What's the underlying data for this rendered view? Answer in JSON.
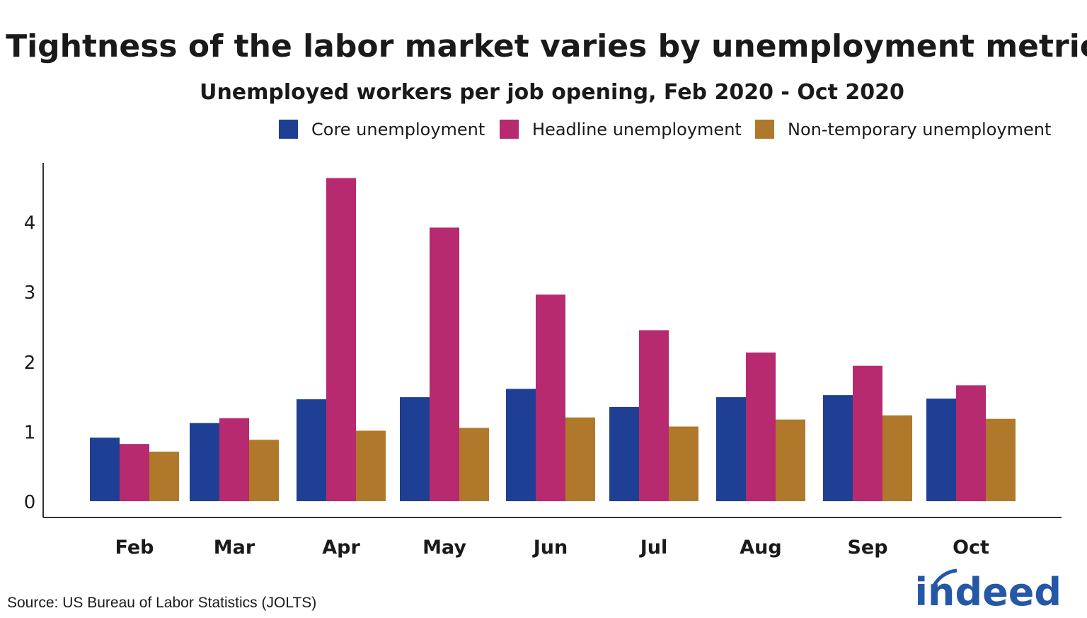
{
  "chart_data": {
    "type": "bar",
    "title": "Tightness of the labor market varies by unemployment metric",
    "subtitle": "Unemployed workers per job opening, Feb 2020 - Oct 2020",
    "xlabel": "",
    "ylabel": "",
    "categories": [
      "Feb",
      "Mar",
      "Apr",
      "May",
      "Jun",
      "Jul",
      "Aug",
      "Sep",
      "Oct"
    ],
    "series": [
      {
        "name": "Core unemployment",
        "color": "#1f3f94",
        "values": [
          0.91,
          1.12,
          1.46,
          1.49,
          1.61,
          1.35,
          1.49,
          1.52,
          1.47
        ]
      },
      {
        "name": "Headline unemployment",
        "color": "#b72a6f",
        "values": [
          0.82,
          1.19,
          4.63,
          3.92,
          2.96,
          2.45,
          2.13,
          1.94,
          1.66
        ]
      },
      {
        "name": "Non-temporary unemployment",
        "color": "#b0782b",
        "values": [
          0.71,
          0.88,
          1.01,
          1.05,
          1.2,
          1.07,
          1.17,
          1.23,
          1.18
        ]
      }
    ],
    "yticks": [
      "0",
      "1",
      "2",
      "3",
      "4"
    ],
    "ylim": [
      0,
      4.85
    ],
    "grid": false,
    "legend_position": "top-right"
  },
  "source": "Source: US Bureau of Labor Statistics (JOLTS)",
  "logo_text": "indeed"
}
